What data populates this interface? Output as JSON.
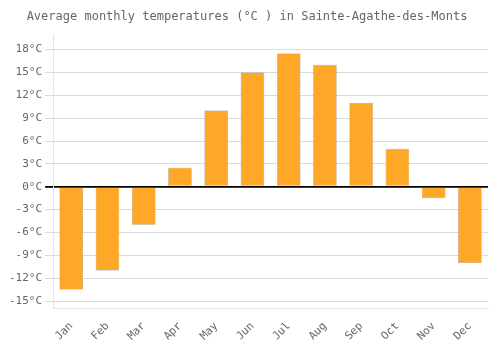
{
  "chart_data": {
    "type": "bar",
    "title": "Average monthly temperatures (°C ) in Sainte-Agathe-des-Monts",
    "categories": [
      "Jan",
      "Feb",
      "Mar",
      "Apr",
      "May",
      "Jun",
      "Jul",
      "Aug",
      "Sep",
      "Oct",
      "Nov",
      "Dec"
    ],
    "values": [
      -13.5,
      -11.0,
      -5.0,
      2.5,
      10.0,
      15.0,
      17.5,
      16.0,
      11.0,
      5.0,
      -1.5,
      -10.0
    ],
    "color": "#FFA726",
    "ylim": [
      -16,
      20
    ],
    "yticks": [
      {
        "value": 18,
        "label": "18°C"
      },
      {
        "value": 15,
        "label": "15°C"
      },
      {
        "value": 12,
        "label": "12°C"
      },
      {
        "value": 9,
        "label": "9°C"
      },
      {
        "value": 6,
        "label": "6°C"
      },
      {
        "value": 3,
        "label": "3°C"
      },
      {
        "value": 0,
        "label": "0°C"
      },
      {
        "value": -3,
        "label": "-3°C"
      },
      {
        "value": -6,
        "label": "-6°C"
      },
      {
        "value": -9,
        "label": "-9°C"
      },
      {
        "value": -12,
        "label": "-12°C"
      },
      {
        "value": -15,
        "label": "-15°C"
      }
    ],
    "grid": true
  }
}
